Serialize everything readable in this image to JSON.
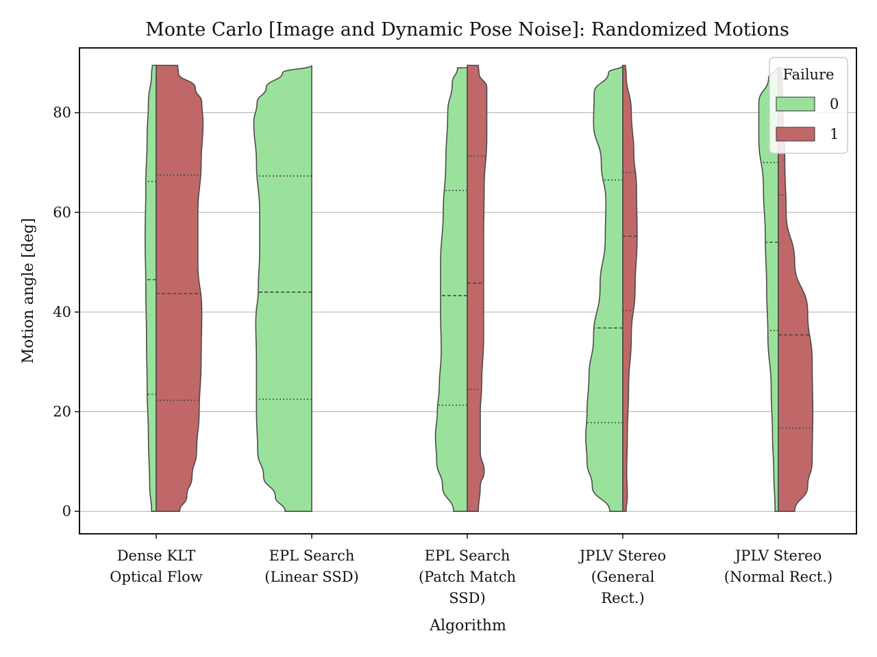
{
  "chart_data": {
    "type": "violin",
    "title": "Monte Carlo [Image and Dynamic Pose Noise]: Randomized Motions",
    "xlabel": "Algorithm",
    "ylabel": "Motion angle [deg]",
    "ylim": [
      -4.5,
      93
    ],
    "yticks": [
      0,
      20,
      40,
      60,
      80
    ],
    "categories": [
      [
        "Dense KLT",
        "Optical Flow"
      ],
      [
        "EPL Search",
        "(Linear SSD)"
      ],
      [
        "EPL Search",
        "(Patch Match",
        "SSD)"
      ],
      [
        "JPLV Stereo",
        "(General",
        "Rect.)"
      ],
      [
        "JPLV Stereo",
        "(Normal Rect.)"
      ]
    ],
    "grid": "horizontal",
    "split": true,
    "inner": "quartile",
    "legend": {
      "title": "Failure",
      "position": "top-right",
      "entries": [
        {
          "label": "0",
          "color": "#9ae29b"
        },
        {
          "label": "1",
          "color": "#c06868"
        }
      ]
    },
    "series": [
      {
        "name": "0",
        "color": "#9ae29b",
        "violins": [
          {
            "range": [
              0,
              89.5
            ],
            "quartiles": [
              23.5,
              46.5,
              66.2
            ],
            "profile": [
              [
                0,
                0.07
              ],
              [
                5,
                0.1
              ],
              [
                15,
                0.12
              ],
              [
                25,
                0.14
              ],
              [
                35,
                0.15
              ],
              [
                45,
                0.16
              ],
              [
                55,
                0.17
              ],
              [
                65,
                0.16
              ],
              [
                75,
                0.14
              ],
              [
                82,
                0.12
              ],
              [
                88,
                0.07
              ],
              [
                89.5,
                0.06
              ]
            ]
          },
          {
            "range": [
              0,
              89.5
            ],
            "quartiles": [
              22.5,
              44.0,
              67.3
            ],
            "profile": [
              [
                0,
                0.41
              ],
              [
                3,
                0.56
              ],
              [
                7,
                0.74
              ],
              [
                12,
                0.83
              ],
              [
                20,
                0.85
              ],
              [
                30,
                0.85
              ],
              [
                38,
                0.86
              ],
              [
                45,
                0.82
              ],
              [
                52,
                0.8
              ],
              [
                60,
                0.8
              ],
              [
                70,
                0.85
              ],
              [
                78,
                0.89
              ],
              [
                82,
                0.84
              ],
              [
                85,
                0.7
              ],
              [
                88,
                0.45
              ],
              [
                89.5,
                0
              ]
            ]
          },
          {
            "range": [
              0,
              89
            ],
            "quartiles": [
              21.3,
              43.3,
              64.4
            ],
            "profile": [
              [
                0,
                0.21
              ],
              [
                5,
                0.38
              ],
              [
                10,
                0.47
              ],
              [
                15,
                0.49
              ],
              [
                20,
                0.46
              ],
              [
                25,
                0.43
              ],
              [
                32,
                0.4
              ],
              [
                40,
                0.41
              ],
              [
                50,
                0.41
              ],
              [
                60,
                0.37
              ],
              [
                70,
                0.33
              ],
              [
                80,
                0.3
              ],
              [
                86,
                0.23
              ],
              [
                89,
                0.15
              ]
            ]
          },
          {
            "range": [
              0,
              89.5
            ],
            "quartiles": [
              17.8,
              36.8,
              66.5
            ],
            "profile": [
              [
                0,
                0.2
              ],
              [
                5,
                0.47
              ],
              [
                10,
                0.55
              ],
              [
                15,
                0.57
              ],
              [
                20,
                0.55
              ],
              [
                27,
                0.52
              ],
              [
                35,
                0.45
              ],
              [
                45,
                0.35
              ],
              [
                55,
                0.27
              ],
              [
                62,
                0.26
              ],
              [
                70,
                0.33
              ],
              [
                78,
                0.45
              ],
              [
                84,
                0.44
              ],
              [
                88,
                0.22
              ],
              [
                89.5,
                0
              ]
            ]
          },
          {
            "range": [
              0,
              89
            ],
            "quartiles": [
              36.3,
              54.0,
              70.0
            ],
            "profile": [
              [
                0,
                0.05
              ],
              [
                8,
                0.07
              ],
              [
                15,
                0.09
              ],
              [
                25,
                0.11
              ],
              [
                35,
                0.16
              ],
              [
                45,
                0.18
              ],
              [
                55,
                0.2
              ],
              [
                65,
                0.23
              ],
              [
                75,
                0.3
              ],
              [
                82,
                0.3
              ],
              [
                87,
                0.15
              ],
              [
                89,
                0.02
              ]
            ]
          }
        ]
      },
      {
        "name": "1",
        "color": "#c06868",
        "violins": [
          {
            "range": [
              0,
              89.5
            ],
            "quartiles": [
              22.3,
              43.7,
              67.5
            ],
            "profile": [
              [
                0,
                0.36
              ],
              [
                3,
                0.47
              ],
              [
                7,
                0.55
              ],
              [
                12,
                0.62
              ],
              [
                20,
                0.66
              ],
              [
                30,
                0.69
              ],
              [
                40,
                0.7
              ],
              [
                50,
                0.64
              ],
              [
                60,
                0.64
              ],
              [
                70,
                0.69
              ],
              [
                78,
                0.72
              ],
              [
                82,
                0.7
              ],
              [
                85,
                0.6
              ],
              [
                88,
                0.34
              ],
              [
                89.5,
                0.33
              ]
            ]
          },
          {
            "range": [
              0,
              0
            ],
            "quartiles": [],
            "profile": []
          },
          {
            "range": [
              0,
              89.5
            ],
            "quartiles": [
              24.5,
              45.8,
              71.3
            ],
            "profile": [
              [
                0,
                0.17
              ],
              [
                5,
                0.2
              ],
              [
                8,
                0.26
              ],
              [
                12,
                0.2
              ],
              [
                20,
                0.2
              ],
              [
                25,
                0.22
              ],
              [
                35,
                0.25
              ],
              [
                45,
                0.25
              ],
              [
                55,
                0.25
              ],
              [
                65,
                0.26
              ],
              [
                75,
                0.3
              ],
              [
                85,
                0.3
              ],
              [
                88,
                0.18
              ],
              [
                89.5,
                0.17
              ]
            ]
          },
          {
            "range": [
              0,
              89.5
            ],
            "quartiles": [
              40.3,
              55.2,
              68.0
            ],
            "profile": [
              [
                0,
                0.05
              ],
              [
                3,
                0.07
              ],
              [
                8,
                0.06
              ],
              [
                15,
                0.07
              ],
              [
                25,
                0.09
              ],
              [
                35,
                0.13
              ],
              [
                45,
                0.19
              ],
              [
                55,
                0.22
              ],
              [
                65,
                0.21
              ],
              [
                72,
                0.17
              ],
              [
                80,
                0.13
              ],
              [
                88,
                0.05
              ],
              [
                89.5,
                0.04
              ]
            ]
          },
          {
            "range": [
              0,
              89
            ],
            "quartiles": [
              16.7,
              35.4,
              63.5
            ],
            "profile": [
              [
                0,
                0.25
              ],
              [
                5,
                0.45
              ],
              [
                10,
                0.52
              ],
              [
                20,
                0.53
              ],
              [
                30,
                0.52
              ],
              [
                40,
                0.45
              ],
              [
                50,
                0.25
              ],
              [
                60,
                0.12
              ],
              [
                70,
                0.1
              ],
              [
                80,
                0.07
              ],
              [
                86,
                0.06
              ],
              [
                89,
                0.04
              ]
            ]
          }
        ]
      }
    ]
  }
}
